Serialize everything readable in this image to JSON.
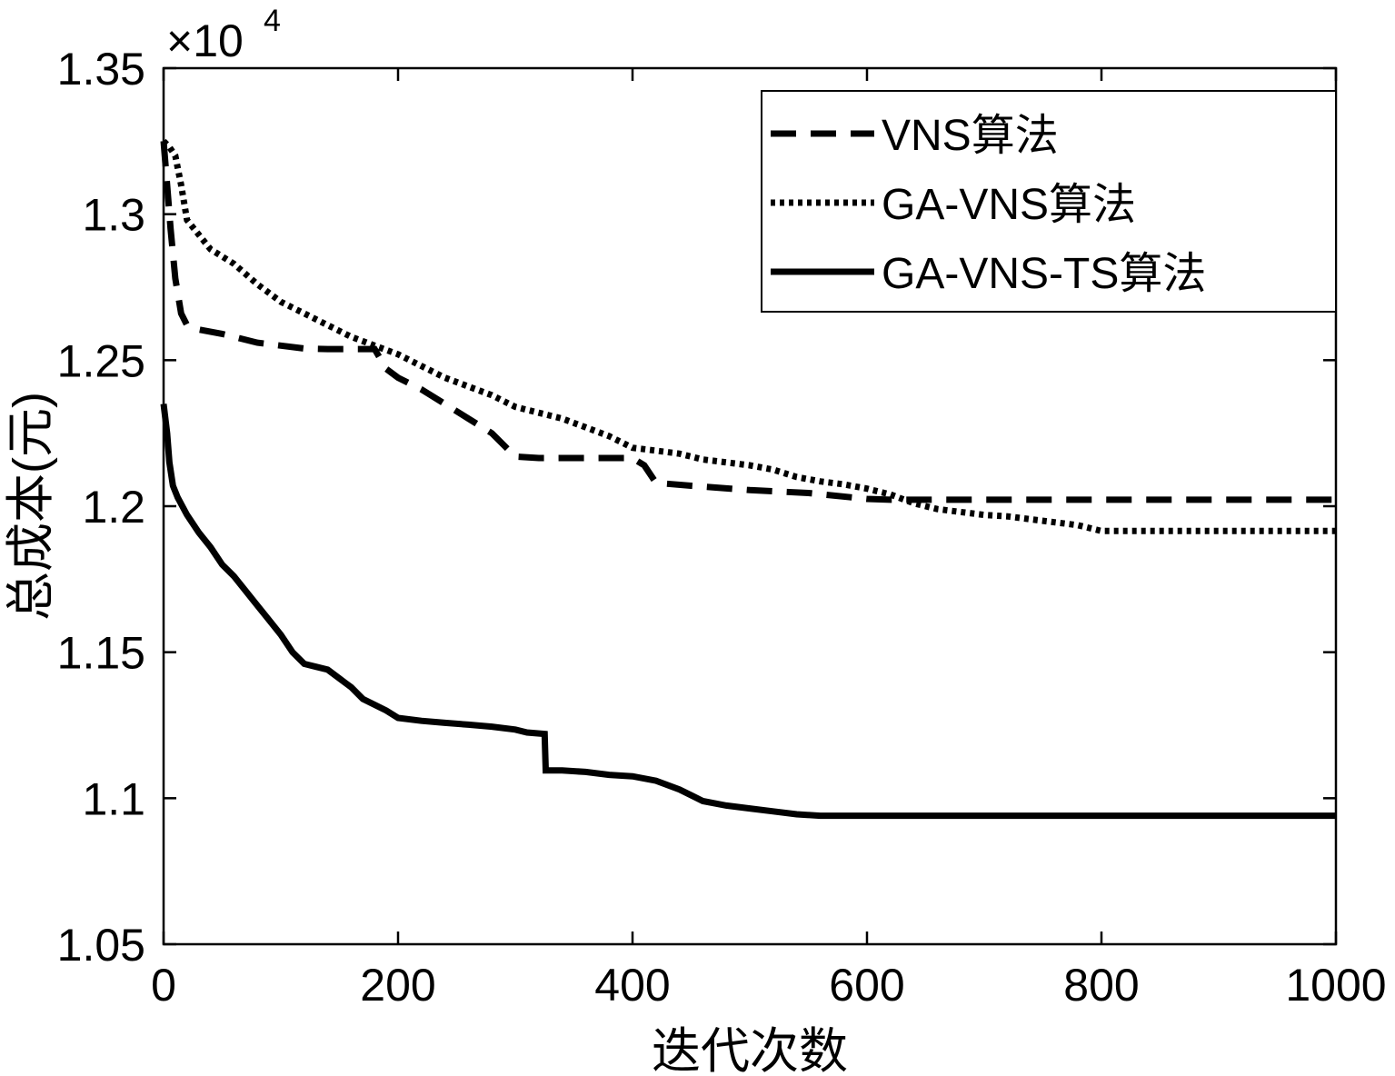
{
  "chart_data": {
    "type": "line",
    "xlabel": "迭代次数",
    "ylabel": "总成本(元)",
    "xlim": [
      0,
      1000
    ],
    "ylim": [
      10500,
      13500
    ],
    "x_ticks": [
      "0",
      "200",
      "400",
      "600",
      "800",
      "1000"
    ],
    "y_ticks": [
      "1.05",
      "1.1",
      "1.15",
      "1.2",
      "1.25",
      "1.3",
      "1.35"
    ],
    "y_tick_values": [
      10500,
      11000,
      11500,
      12000,
      12500,
      13000,
      13500
    ],
    "y_exponent_label": "×10",
    "y_exponent_power": "4",
    "legend_position": "top-right",
    "series": [
      {
        "name": "VNS算法",
        "style": "dashed",
        "color": "#000000",
        "x": [
          0,
          3,
          6,
          10,
          15,
          20,
          30,
          50,
          80,
          100,
          120,
          140,
          160,
          180,
          190,
          200,
          220,
          240,
          260,
          280,
          300,
          320,
          340,
          360,
          380,
          400,
          410,
          420,
          450,
          500,
          550,
          600,
          620,
          650,
          700,
          800,
          900,
          1000
        ],
        "y": [
          13250,
          13100,
          12950,
          12780,
          12660,
          12620,
          12605,
          12590,
          12560,
          12550,
          12540,
          12538,
          12538,
          12538,
          12470,
          12440,
          12400,
          12350,
          12300,
          12250,
          12170,
          12165,
          12165,
          12165,
          12165,
          12165,
          12140,
          12080,
          12070,
          12055,
          12045,
          12025,
          12022,
          12022,
          12022,
          12022,
          12022,
          12022
        ]
      },
      {
        "name": "GA-VNS算法",
        "style": "dotted",
        "color": "#000000",
        "x": [
          0,
          5,
          10,
          15,
          20,
          30,
          40,
          60,
          80,
          100,
          120,
          140,
          160,
          180,
          200,
          220,
          240,
          260,
          280,
          300,
          320,
          340,
          360,
          380,
          400,
          420,
          440,
          460,
          480,
          500,
          520,
          540,
          560,
          580,
          600,
          620,
          640,
          660,
          680,
          700,
          720,
          740,
          760,
          780,
          800,
          850,
          900,
          950,
          1000
        ],
        "y": [
          13250,
          13230,
          13200,
          13100,
          12980,
          12930,
          12880,
          12830,
          12760,
          12700,
          12660,
          12620,
          12580,
          12550,
          12520,
          12480,
          12440,
          12410,
          12380,
          12340,
          12320,
          12300,
          12270,
          12240,
          12200,
          12190,
          12180,
          12160,
          12150,
          12140,
          12125,
          12100,
          12085,
          12075,
          12060,
          12040,
          12010,
          11990,
          11980,
          11970,
          11965,
          11955,
          11945,
          11935,
          11915,
          11915,
          11915,
          11915,
          11915
        ]
      },
      {
        "name": "GA-VNS-TS算法",
        "style": "solid",
        "color": "#000000",
        "x": [
          0,
          3,
          5,
          8,
          12,
          20,
          30,
          40,
          50,
          60,
          70,
          80,
          90,
          100,
          110,
          120,
          130,
          140,
          150,
          160,
          170,
          180,
          190,
          200,
          220,
          240,
          260,
          280,
          300,
          310,
          325,
          326,
          330,
          340,
          360,
          380,
          400,
          420,
          440,
          460,
          480,
          500,
          520,
          540,
          560,
          600,
          700,
          800,
          900,
          1000
        ],
        "y": [
          12350,
          12250,
          12150,
          12070,
          12030,
          11970,
          11910,
          11860,
          11800,
          11760,
          11710,
          11660,
          11610,
          11560,
          11500,
          11460,
          11450,
          11440,
          11410,
          11380,
          11340,
          11320,
          11300,
          11275,
          11265,
          11258,
          11252,
          11245,
          11235,
          11225,
          11220,
          11095,
          11095,
          11095,
          11090,
          11080,
          11075,
          11060,
          11030,
          10990,
          10975,
          10965,
          10955,
          10945,
          10940,
          10940,
          10940,
          10940,
          10940,
          10940
        ]
      }
    ]
  }
}
